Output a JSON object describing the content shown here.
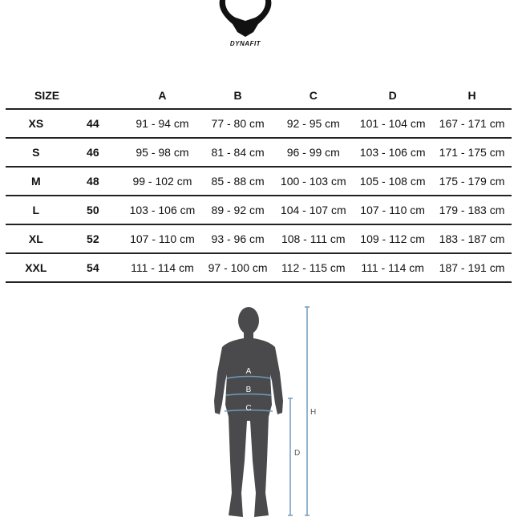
{
  "brand": {
    "name": "DYNAFIT"
  },
  "table": {
    "headers": {
      "size": "SIZE",
      "a": "A",
      "b": "B",
      "c": "C",
      "d": "D",
      "h": "H"
    },
    "rows": [
      {
        "size": "XS",
        "num": "44",
        "a": "91 - 94 cm",
        "b": "77 - 80 cm",
        "c": "92 - 95 cm",
        "d": "101 - 104 cm",
        "h": "167 - 171 cm"
      },
      {
        "size": "S",
        "num": "46",
        "a": "95 - 98 cm",
        "b": "81 - 84 cm",
        "c": "96 - 99 cm",
        "d": "103 - 106 cm",
        "h": "171 - 175 cm"
      },
      {
        "size": "M",
        "num": "48",
        "a": "99 - 102 cm",
        "b": "85 - 88 cm",
        "c": "100 - 103 cm",
        "d": "105 - 108 cm",
        "h": "175 - 179 cm"
      },
      {
        "size": "L",
        "num": "50",
        "a": "103 - 106 cm",
        "b": "89 - 92 cm",
        "c": "104 - 107 cm",
        "d": "107 - 110 cm",
        "h": "179 - 183 cm"
      },
      {
        "size": "XL",
        "num": "52",
        "a": "107 - 110 cm",
        "b": "93 - 96 cm",
        "c": "108 - 111 cm",
        "d": "109 - 112 cm",
        "h": "183 - 187 cm"
      },
      {
        "size": "XXL",
        "num": "54",
        "a": "111 - 114 cm",
        "b": "97 - 100 cm",
        "c": "112 - 115 cm",
        "d": "111 - 114 cm",
        "h": "187 - 191 cm"
      }
    ]
  },
  "figure": {
    "labels": {
      "a": "A",
      "b": "B",
      "c": "C",
      "d": "D",
      "h": "H"
    }
  },
  "colors": {
    "silhouette": "#4a4a4c",
    "measure_line": "#6f9bbd",
    "rule": "#222222"
  }
}
